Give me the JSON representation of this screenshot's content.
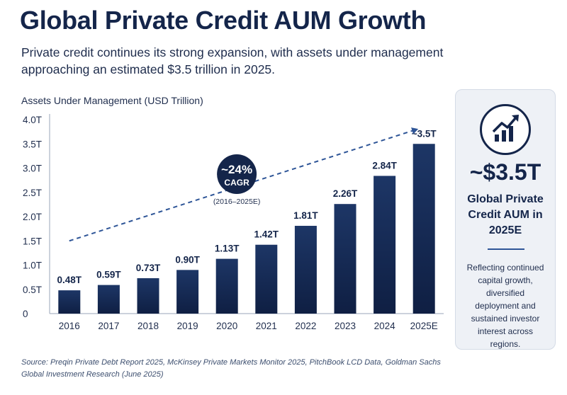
{
  "title": "Global Private Credit AUM Growth",
  "subtitle": "Private credit continues its strong expansion, with assets under management approaching an estimated $3.5 trillion in 2025.",
  "axis_title": "Assets Under Management (USD Trillion)",
  "chart_data": {
    "type": "bar",
    "ylabel": "Assets Under Management (USD Trillion)",
    "categories": [
      "2016",
      "2017",
      "2018",
      "2019",
      "2020",
      "2021",
      "2022",
      "2023",
      "2024",
      "2025E"
    ],
    "values": [
      0.48,
      0.59,
      0.73,
      0.9,
      1.13,
      1.42,
      1.81,
      2.26,
      2.84,
      3.5
    ],
    "value_labels": [
      "0.48T",
      "0.59T",
      "0.73T",
      "0.90T",
      "1.13T",
      "1.42T",
      "1.81T",
      "2.26T",
      "2.84T",
      "~3.5T"
    ],
    "ylim": [
      0,
      4.0
    ],
    "yticks": [
      0,
      0.5,
      1.0,
      1.5,
      2.0,
      2.5,
      3.0,
      3.5,
      4.0
    ],
    "ytick_labels": [
      "0",
      "0.5T",
      "1.0T",
      "1.5T",
      "2.0T",
      "2.5T",
      "3.0T",
      "3.5T",
      "4.0T"
    ],
    "grid": false,
    "trend_arrow": {
      "from": {
        "x": "2016",
        "y": 1.5
      },
      "to": {
        "x": "2025E",
        "y": 3.8
      },
      "style": "dashed"
    },
    "annotation": {
      "value": "~24%",
      "label": "CAGR",
      "note": "(2016–2025E)"
    },
    "colors": {
      "bar_top": "#1d3666",
      "bar_bottom": "#0f1f43",
      "trend": "#2e5597",
      "badge": "#14254a"
    }
  },
  "side_card": {
    "icon": "growth-chart-icon",
    "value": "~$3.5T",
    "label": "Global Private Credit AUM in 2025E",
    "note": "Reflecting continued capital growth, diversified deployment and sustained investor interest across regions."
  },
  "source": "Source: Preqin Private Debt Report 2025, McKinsey Private Markets Monitor 2025, PitchBook LCD Data, Goldman Sachs Global Investment Research (June 2025)"
}
